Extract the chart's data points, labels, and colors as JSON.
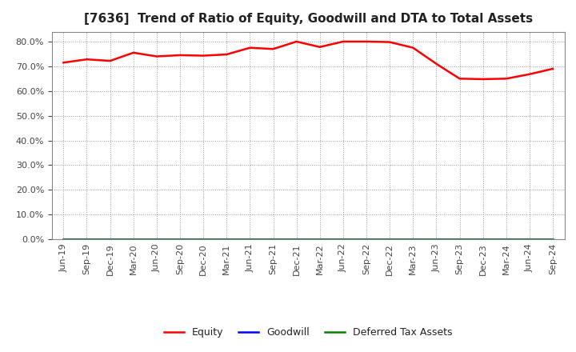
{
  "title": "[7636]  Trend of Ratio of Equity, Goodwill and DTA to Total Assets",
  "x_labels": [
    "Jun-19",
    "Sep-19",
    "Dec-19",
    "Mar-20",
    "Jun-20",
    "Sep-20",
    "Dec-20",
    "Mar-21",
    "Jun-21",
    "Sep-21",
    "Dec-21",
    "Mar-22",
    "Jun-22",
    "Sep-22",
    "Dec-22",
    "Mar-23",
    "Jun-23",
    "Sep-23",
    "Dec-23",
    "Mar-24",
    "Jun-24",
    "Sep-24"
  ],
  "equity": [
    0.715,
    0.728,
    0.722,
    0.755,
    0.74,
    0.745,
    0.743,
    0.748,
    0.775,
    0.77,
    0.8,
    0.778,
    0.8,
    0.8,
    0.798,
    0.775,
    0.71,
    0.65,
    0.648,
    0.65,
    0.668,
    0.69
  ],
  "goodwill": [
    0.0,
    0.0,
    0.0,
    0.0,
    0.0,
    0.0,
    0.0,
    0.0,
    0.0,
    0.0,
    0.0,
    0.0,
    0.0,
    0.0,
    0.0,
    0.0,
    0.0,
    0.0,
    0.0,
    0.0,
    0.0,
    0.0
  ],
  "dta": [
    0.0,
    0.0,
    0.0,
    0.0,
    0.0,
    0.0,
    0.0,
    0.0,
    0.0,
    0.0,
    0.0,
    0.0,
    0.0,
    0.0,
    0.0,
    0.0,
    0.0,
    0.0,
    0.0,
    0.0,
    0.0,
    0.0
  ],
  "equity_color": "#ff0000",
  "goodwill_color": "#0000ff",
  "dta_color": "#008000",
  "ylim": [
    0.0,
    0.84
  ],
  "yticks": [
    0.0,
    0.1,
    0.2,
    0.3,
    0.4,
    0.5,
    0.6,
    0.7,
    0.8
  ],
  "background_color": "#ffffff",
  "plot_bg_color": "#ffffff",
  "grid_color": "#999999",
  "title_fontsize": 11,
  "tick_fontsize": 8,
  "legend_fontsize": 9,
  "legend_labels": [
    "Equity",
    "Goodwill",
    "Deferred Tax Assets"
  ]
}
